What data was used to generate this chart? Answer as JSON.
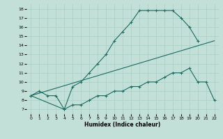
{
  "xlabel": "Humidex (Indice chaleur)",
  "bg_color": "#c2e0d8",
  "line_color": "#1a6b60",
  "grid_color": "#a8cfc8",
  "xlim": [
    -0.5,
    22.5
  ],
  "ylim": [
    6.5,
    18.5
  ],
  "xticks": [
    0,
    1,
    2,
    3,
    4,
    5,
    6,
    7,
    8,
    9,
    10,
    11,
    12,
    13,
    14,
    15,
    16,
    17,
    18,
    19,
    20,
    21,
    22
  ],
  "yticks": [
    7,
    8,
    9,
    10,
    11,
    12,
    13,
    14,
    15,
    16,
    17,
    18
  ],
  "line1_x": [
    0,
    1,
    2,
    3,
    4,
    5,
    6,
    7,
    8,
    9,
    10,
    11,
    12,
    13,
    14,
    15,
    16,
    17,
    18,
    19,
    20
  ],
  "line1_y": [
    8.5,
    9.0,
    8.5,
    8.5,
    7.0,
    9.5,
    10.0,
    11.0,
    12.0,
    13.0,
    14.5,
    15.5,
    16.5,
    17.8,
    17.8,
    17.8,
    17.8,
    17.8,
    17.0,
    16.0,
    14.5
  ],
  "line2_x": [
    0,
    22
  ],
  "line2_y": [
    8.5,
    14.5
  ],
  "line3_x": [
    0,
    4,
    5,
    6,
    7,
    8,
    9,
    10,
    11,
    12,
    13,
    14,
    15,
    16,
    17,
    18,
    19,
    20,
    21,
    22
  ],
  "line3_y": [
    8.5,
    7.0,
    7.5,
    7.5,
    8.0,
    8.5,
    8.5,
    9.0,
    9.0,
    9.5,
    9.5,
    10.0,
    10.0,
    10.5,
    11.0,
    11.0,
    11.5,
    10.0,
    10.0,
    8.0
  ]
}
